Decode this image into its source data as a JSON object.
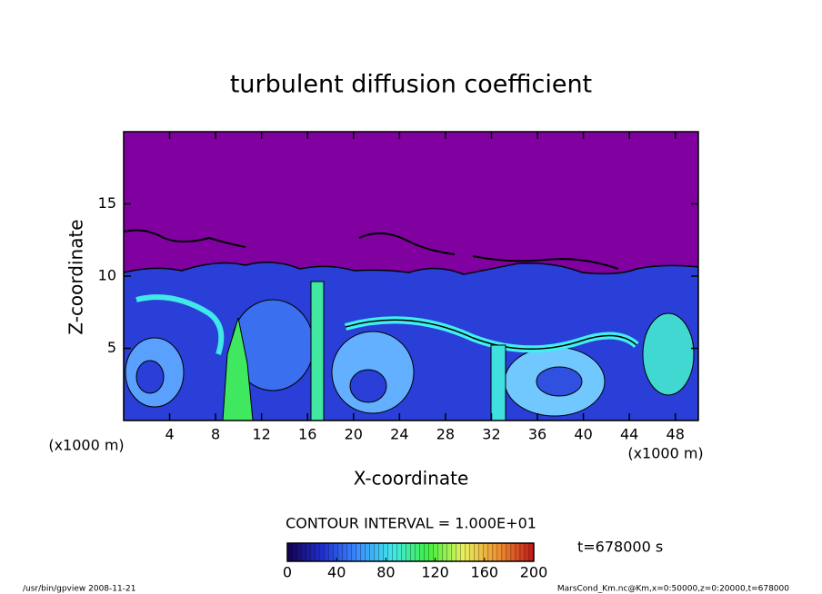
{
  "chart_data": {
    "type": "contour",
    "title": "turbulent diffusion coefficient",
    "x_label": "X-coordinate",
    "y_label": "Z-coordinate",
    "x_unit": "(x1000 m)",
    "y_unit": "(x1000 m)",
    "xlim": [
      0,
      50
    ],
    "xticks": [
      4,
      8,
      12,
      16,
      20,
      24,
      28,
      32,
      36,
      40,
      44,
      48
    ],
    "ylim": [
      0,
      20
    ],
    "yticks": [
      5,
      10,
      15
    ],
    "contour_interval_label": "CONTOUR INTERVAL = 1.000E+01",
    "colorbar": {
      "lim": [
        0,
        200
      ],
      "ticks": [
        0,
        40,
        80,
        120,
        160,
        200
      ],
      "colors": [
        "#140050",
        "#2030d0",
        "#3c8cff",
        "#40e8e8",
        "#40f040",
        "#e8f060",
        "#f09030",
        "#c01818"
      ]
    },
    "time_label": "t=678000 s",
    "footer_left": "/usr/bin/gpview   2008-11-21",
    "footer_right": "MarsCond_Km.nc@Km,x=0:50000,z=0:20000,t=678000"
  }
}
